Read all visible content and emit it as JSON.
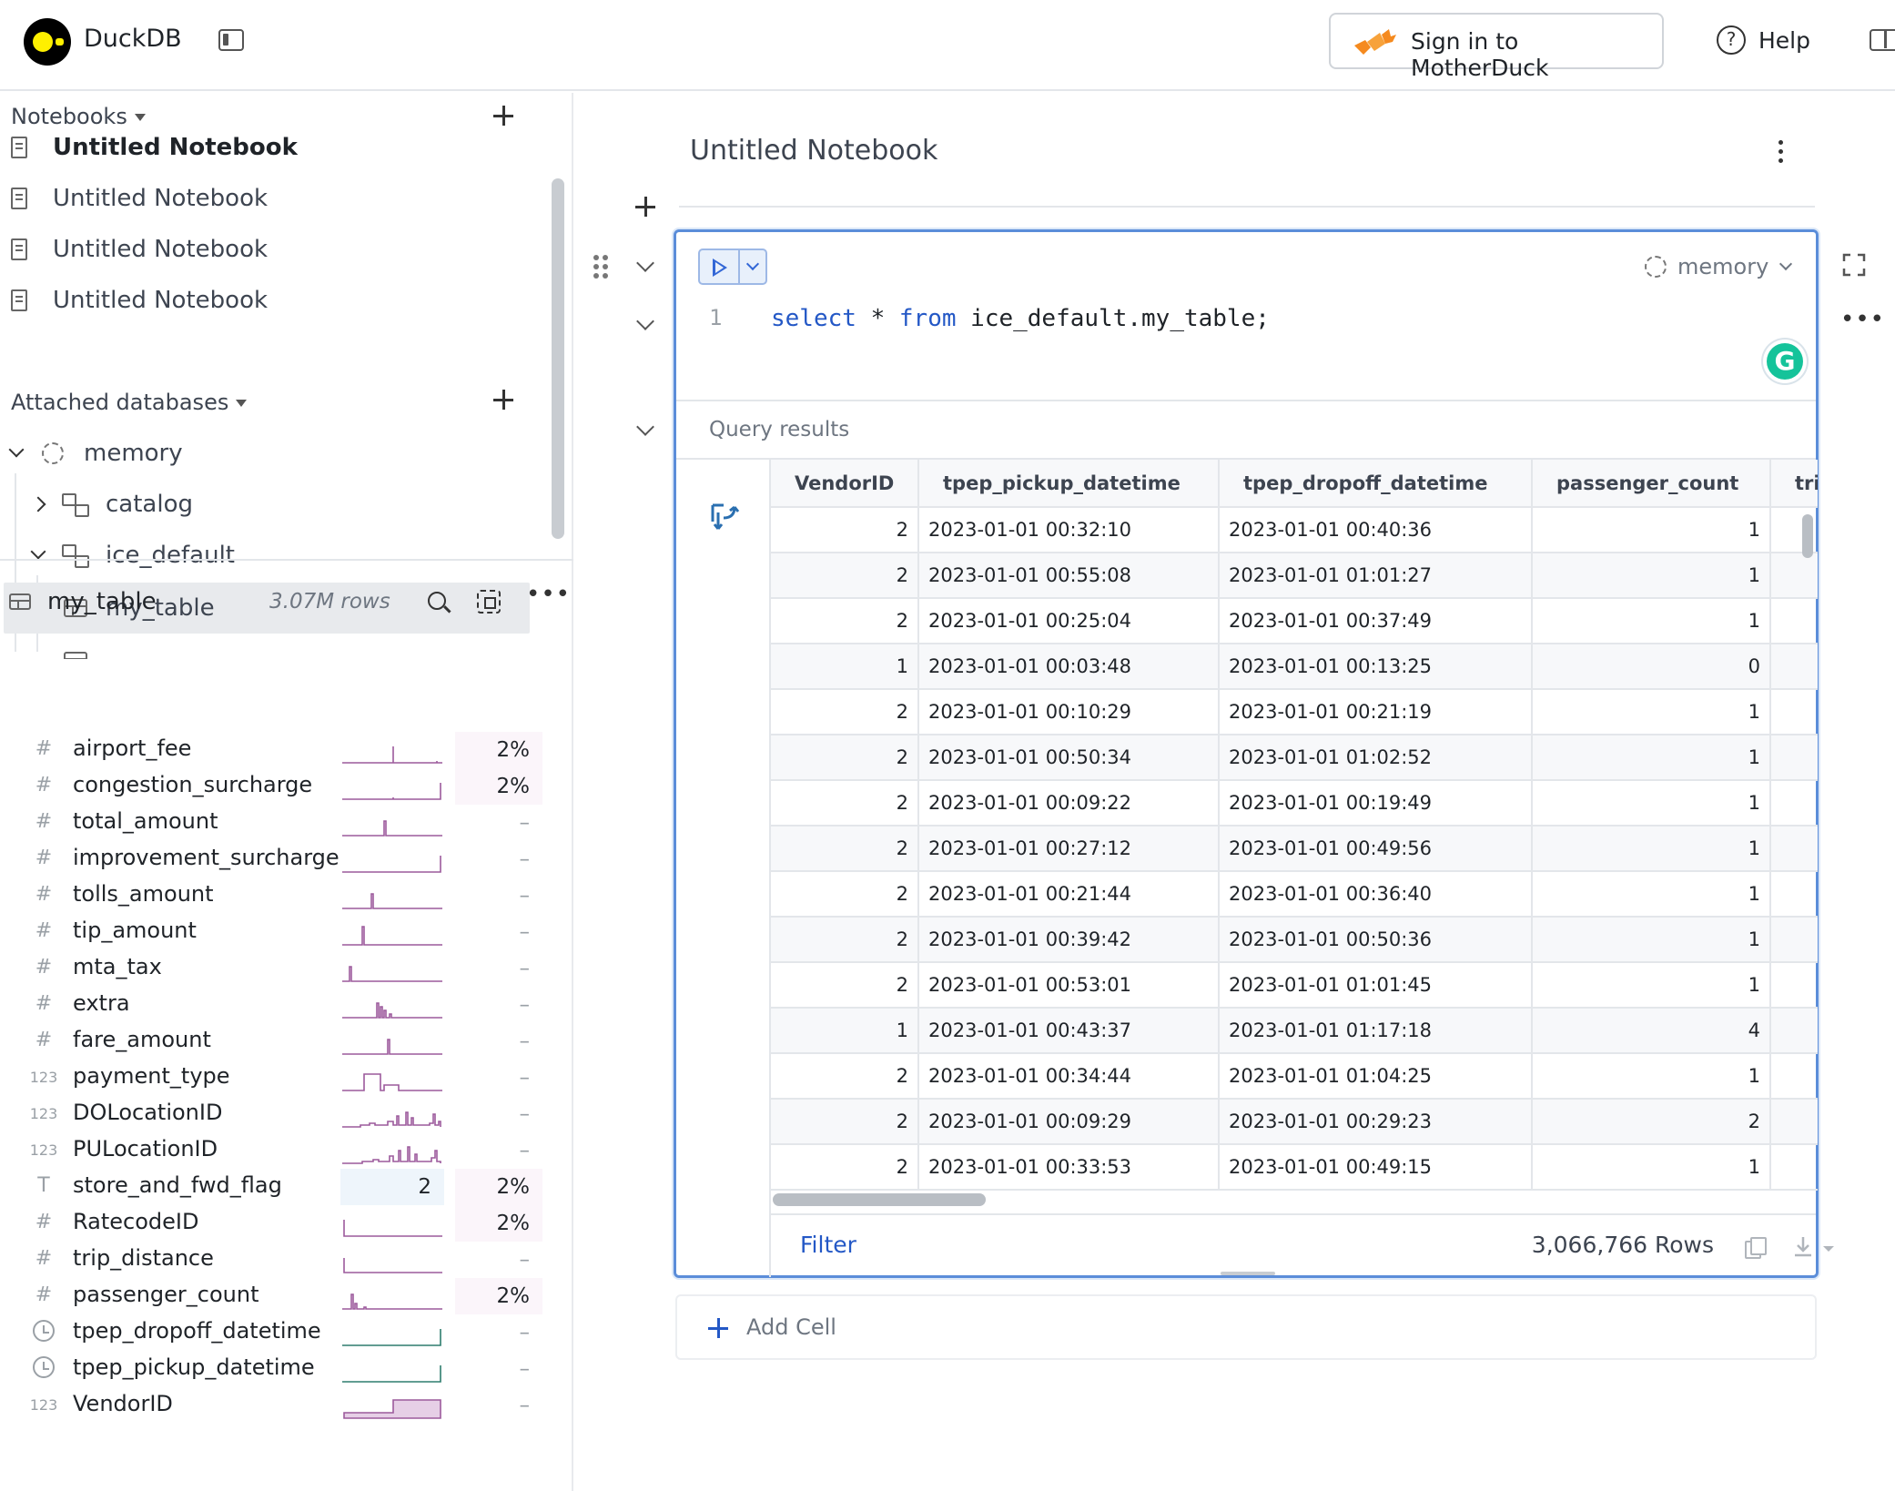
{
  "app": {
    "title": "DuckDB"
  },
  "header": {
    "signin_label": "Sign in to MotherDuck",
    "help_label": "Help"
  },
  "sidebar": {
    "notebooks_label": "Notebooks",
    "notebooks": [
      {
        "label": "Untitled Notebook"
      },
      {
        "label": "Untitled Notebook"
      },
      {
        "label": "Untitled Notebook"
      },
      {
        "label": "Untitled Notebook"
      }
    ],
    "databases_label": "Attached databases",
    "tree": {
      "database": "memory",
      "schemas": [
        "catalog",
        "ice_default"
      ],
      "table": "my_table"
    }
  },
  "summary": {
    "table_name": "my_table",
    "row_count": "3.07M rows",
    "columns": [
      {
        "type": "#",
        "name": "airport_fee",
        "pct": "2%"
      },
      {
        "type": "#",
        "name": "congestion_surcharge",
        "pct": "2%"
      },
      {
        "type": "#",
        "name": "total_amount",
        "pct": "–"
      },
      {
        "type": "#",
        "name": "improvement_surcharge",
        "pct": "–"
      },
      {
        "type": "#",
        "name": "tolls_amount",
        "pct": "–"
      },
      {
        "type": "#",
        "name": "tip_amount",
        "pct": "–"
      },
      {
        "type": "#",
        "name": "mta_tax",
        "pct": "–"
      },
      {
        "type": "#",
        "name": "extra",
        "pct": "–"
      },
      {
        "type": "#",
        "name": "fare_amount",
        "pct": "–"
      },
      {
        "type": "123",
        "name": "payment_type",
        "pct": "–"
      },
      {
        "type": "123",
        "name": "DOLocationID",
        "pct": "–"
      },
      {
        "type": "123",
        "name": "PULocationID",
        "pct": "–"
      },
      {
        "type": "T",
        "name": "store_and_fwd_flag",
        "count": "2",
        "pct": "2%"
      },
      {
        "type": "#",
        "name": "RatecodeID",
        "pct": "2%"
      },
      {
        "type": "#",
        "name": "trip_distance",
        "pct": "–"
      },
      {
        "type": "#",
        "name": "passenger_count",
        "pct": "2%"
      },
      {
        "type": "clock",
        "name": "tpep_dropoff_datetime",
        "pct": "–"
      },
      {
        "type": "clock",
        "name": "tpep_pickup_datetime",
        "pct": "–"
      },
      {
        "type": "123",
        "name": "VendorID",
        "pct": "–"
      }
    ]
  },
  "notebook": {
    "title": "Untitled Notebook",
    "cell": {
      "database": "memory",
      "line_number": "1",
      "code": {
        "kw1": "select",
        "star": " * ",
        "kw2": "from",
        "rest": " ice_default.my_table;"
      },
      "results_label": "Query results",
      "columns": [
        "VendorID",
        "tpep_pickup_datetime",
        "tpep_dropoff_datetime",
        "passenger_count",
        "trip_distance"
      ],
      "rows": [
        [
          "2",
          "2023-01-01 00:32:10",
          "2023-01-01 00:40:36",
          "1"
        ],
        [
          "2",
          "2023-01-01 00:55:08",
          "2023-01-01 01:01:27",
          "1"
        ],
        [
          "2",
          "2023-01-01 00:25:04",
          "2023-01-01 00:37:49",
          "1"
        ],
        [
          "1",
          "2023-01-01 00:03:48",
          "2023-01-01 00:13:25",
          "0"
        ],
        [
          "2",
          "2023-01-01 00:10:29",
          "2023-01-01 00:21:19",
          "1"
        ],
        [
          "2",
          "2023-01-01 00:50:34",
          "2023-01-01 01:02:52",
          "1"
        ],
        [
          "2",
          "2023-01-01 00:09:22",
          "2023-01-01 00:19:49",
          "1"
        ],
        [
          "2",
          "2023-01-01 00:27:12",
          "2023-01-01 00:49:56",
          "1"
        ],
        [
          "2",
          "2023-01-01 00:21:44",
          "2023-01-01 00:36:40",
          "1"
        ],
        [
          "2",
          "2023-01-01 00:39:42",
          "2023-01-01 00:50:36",
          "1"
        ],
        [
          "2",
          "2023-01-01 00:53:01",
          "2023-01-01 01:01:45",
          "1"
        ],
        [
          "1",
          "2023-01-01 00:43:37",
          "2023-01-01 01:17:18",
          "4"
        ],
        [
          "2",
          "2023-01-01 00:34:44",
          "2023-01-01 01:04:25",
          "1"
        ],
        [
          "2",
          "2023-01-01 00:09:29",
          "2023-01-01 00:29:23",
          "2"
        ],
        [
          "2",
          "2023-01-01 00:33:53",
          "2023-01-01 00:49:15",
          "1"
        ]
      ],
      "filter_label": "Filter",
      "row_total": "3,066,766 Rows"
    },
    "add_cell_label": "Add Cell"
  },
  "colors": {
    "accent": "#2458c6",
    "cell_border": "#5b8dd9",
    "spark": "#9c5a9c"
  }
}
